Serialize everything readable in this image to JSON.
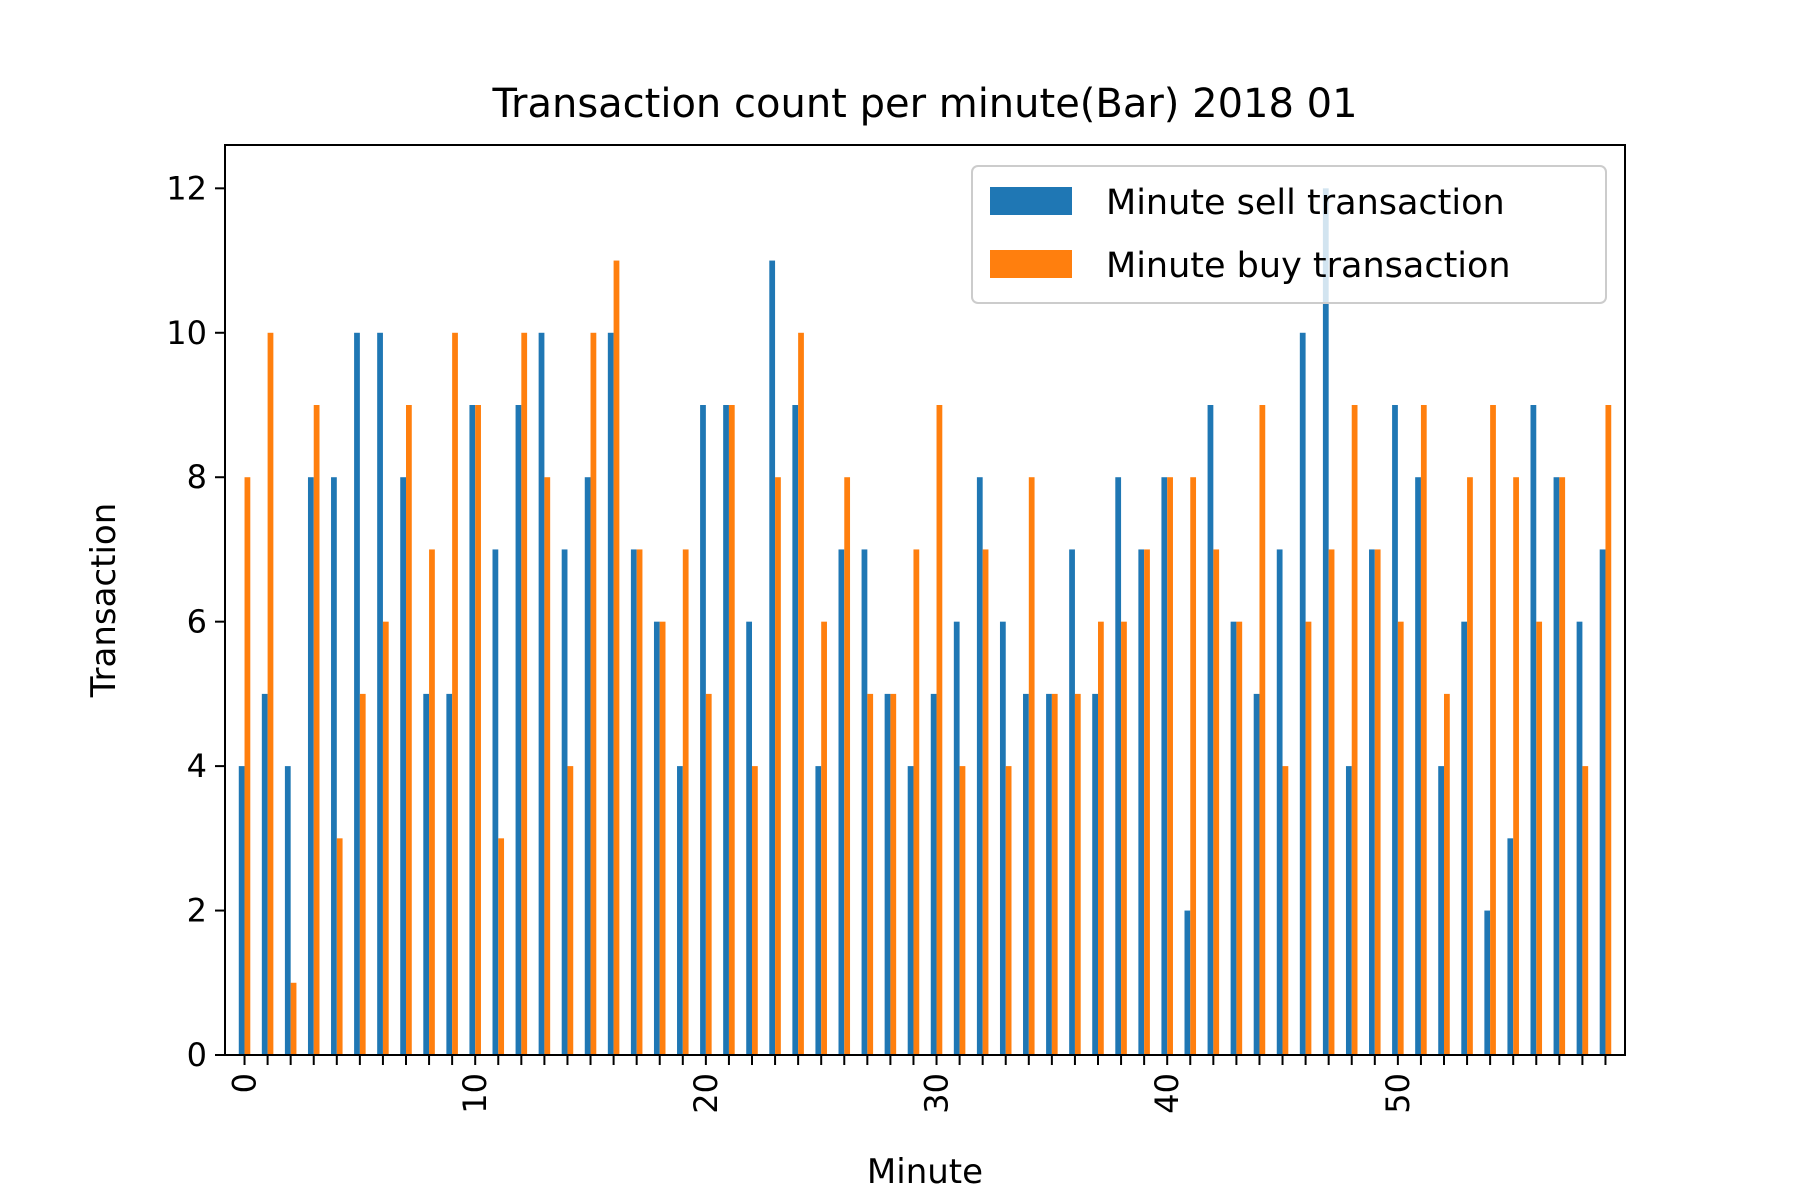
{
  "chart_data": {
    "type": "bar",
    "title": "Transaction count per minute(Bar) 2018 01",
    "xlabel": "Minute",
    "ylabel": "Transaction",
    "ylim": [
      0,
      12.6
    ],
    "yticks": [
      0,
      2,
      4,
      6,
      8,
      10,
      12
    ],
    "xtick_labels_shown": [
      "0",
      "10",
      "20",
      "30",
      "40",
      "50"
    ],
    "grid": false,
    "legend_position": "top-right",
    "categories": [
      0,
      1,
      2,
      3,
      4,
      5,
      6,
      7,
      8,
      9,
      10,
      11,
      12,
      13,
      14,
      15,
      16,
      17,
      18,
      19,
      20,
      21,
      22,
      23,
      24,
      25,
      26,
      27,
      28,
      29,
      30,
      31,
      32,
      33,
      34,
      35,
      36,
      37,
      38,
      39,
      40,
      41,
      42,
      43,
      44,
      45,
      46,
      47,
      48,
      49,
      50,
      51,
      52,
      53,
      54,
      55,
      56,
      57,
      58,
      59
    ],
    "series": [
      {
        "name": "Minute sell transaction",
        "color": "#1f77b4",
        "values": [
          4,
          5,
          4,
          8,
          8,
          10,
          10,
          8,
          5,
          5,
          9,
          7,
          9,
          10,
          7,
          8,
          10,
          7,
          6,
          4,
          9,
          9,
          6,
          11,
          9,
          4,
          7,
          7,
          5,
          4,
          5,
          6,
          8,
          6,
          5,
          5,
          7,
          5,
          8,
          7,
          8,
          2,
          9,
          6,
          5,
          7,
          10,
          12,
          4,
          7,
          9,
          8,
          4,
          6,
          2,
          3,
          9,
          8,
          6,
          7
        ]
      },
      {
        "name": "Minute buy transaction",
        "color": "#ff7f0e",
        "values": [
          8,
          10,
          1,
          9,
          3,
          5,
          6,
          9,
          7,
          10,
          9,
          3,
          10,
          8,
          4,
          10,
          11,
          7,
          6,
          7,
          5,
          9,
          4,
          8,
          10,
          6,
          8,
          5,
          5,
          7,
          9,
          4,
          7,
          4,
          8,
          5,
          5,
          6,
          6,
          7,
          8,
          8,
          7,
          6,
          9,
          4,
          6,
          7,
          9,
          7,
          6,
          9,
          5,
          8,
          9,
          8,
          6,
          8,
          4,
          9
        ]
      }
    ]
  }
}
